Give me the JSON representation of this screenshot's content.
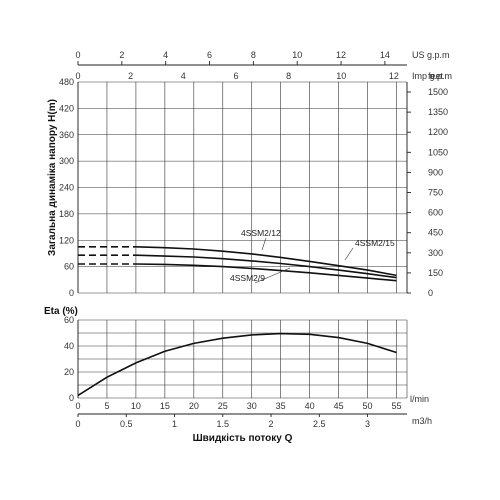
{
  "chart_data": [
    {
      "type": "line",
      "ylabel": "Загальна динаміка напору H(m)",
      "ylim": [
        0,
        480
      ],
      "yticks": [
        0,
        60,
        120,
        180,
        240,
        300,
        360,
        420,
        480
      ],
      "y_right_unit": "feet",
      "y_right_ticks": [
        "1500",
        "1350",
        "1200",
        "1050",
        "900",
        "750",
        "600",
        "450",
        "300",
        "150",
        "0"
      ],
      "top_axis_1": {
        "unit": "US g.p.m",
        "ticks": [
          "0",
          "2",
          "4",
          "6",
          "8",
          "10",
          "12",
          "14"
        ]
      },
      "top_axis_2": {
        "unit": "Imp g.p.m",
        "ticks": [
          "0",
          "2",
          "4",
          "6",
          "8",
          "10",
          "12"
        ]
      },
      "grid": true,
      "series": [
        {
          "name": "4SSM2/15",
          "x": [
            10,
            15,
            20,
            25,
            30,
            35,
            40,
            45,
            50,
            55
          ],
          "values": [
            105,
            103,
            100,
            95,
            89,
            81,
            72,
            62,
            52,
            40
          ],
          "dashed_x": [
            0,
            10
          ]
        },
        {
          "name": "4SSM2/12",
          "x": [
            10,
            15,
            20,
            25,
            30,
            35,
            40,
            45,
            50,
            55
          ],
          "values": [
            86,
            84,
            82,
            78,
            73,
            67,
            60,
            52,
            44,
            35
          ],
          "dashed_x": [
            0,
            10
          ]
        },
        {
          "name": "4SSM2/9",
          "x": [
            10,
            15,
            20,
            25,
            30,
            35,
            40,
            45,
            50,
            55
          ],
          "values": [
            66,
            65,
            63,
            60,
            56,
            51,
            46,
            40,
            34,
            28
          ],
          "dashed_x": [
            0,
            10
          ]
        }
      ]
    },
    {
      "type": "line",
      "ylabel": "Eta (%)",
      "ylim": [
        0,
        60
      ],
      "yticks": [
        0,
        20,
        40,
        60
      ],
      "grid": true,
      "series": [
        {
          "name": "",
          "x": [
            0,
            5,
            10,
            15,
            20,
            25,
            30,
            35,
            40,
            45,
            50,
            55
          ],
          "values": [
            2,
            16,
            27,
            36,
            42,
            46,
            48.5,
            49.5,
            49,
            46.5,
            42,
            35
          ]
        }
      ]
    }
  ],
  "bottom_axis_1": {
    "unit": "l/min",
    "ticks": [
      "0",
      "5",
      "10",
      "15",
      "20",
      "25",
      "30",
      "35",
      "40",
      "45",
      "50",
      "55"
    ]
  },
  "bottom_axis_2": {
    "unit": "m3/h",
    "ticks": [
      "0",
      "0.5",
      "1",
      "1.5",
      "2",
      "2.5",
      "3"
    ]
  },
  "xlabel": "Швидкість потоку Q"
}
